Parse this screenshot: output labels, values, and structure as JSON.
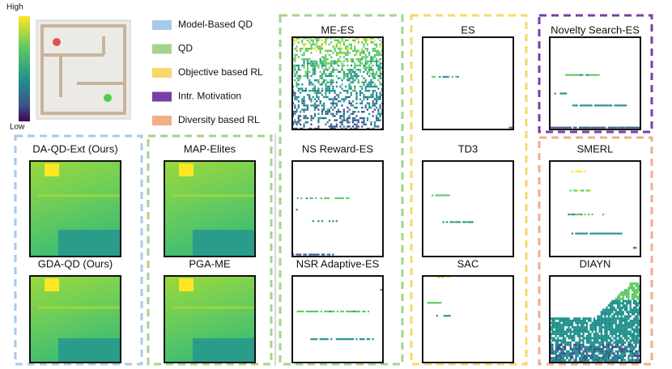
{
  "colorbar": {
    "high": "High",
    "low": "Low"
  },
  "legend": [
    {
      "label": "Model-Based QD",
      "color": "#a9c9e9"
    },
    {
      "label": "QD",
      "color": "#a6d38a"
    },
    {
      "label": "Objective based RL",
      "color": "#f7d86a"
    },
    {
      "label": "Intr. Motivation",
      "color": "#7a3fa6"
    },
    {
      "label": "Diversity based RL",
      "color": "#f2ae86"
    }
  ],
  "panels": [
    {
      "title": "ME-ES"
    },
    {
      "title": "ES"
    },
    {
      "title": "Novelty Search-ES"
    },
    {
      "title": "DA-QD-Ext (Ours)"
    },
    {
      "title": "MAP-Elites"
    },
    {
      "title": "NS Reward-ES"
    },
    {
      "title": "TD3"
    },
    {
      "title": "SMERL"
    },
    {
      "title": "GDA-QD (Ours)"
    },
    {
      "title": "PGA-ME"
    },
    {
      "title": "NSR Adaptive-ES"
    },
    {
      "title": "SAC"
    },
    {
      "title": "DIAYN"
    }
  ]
}
